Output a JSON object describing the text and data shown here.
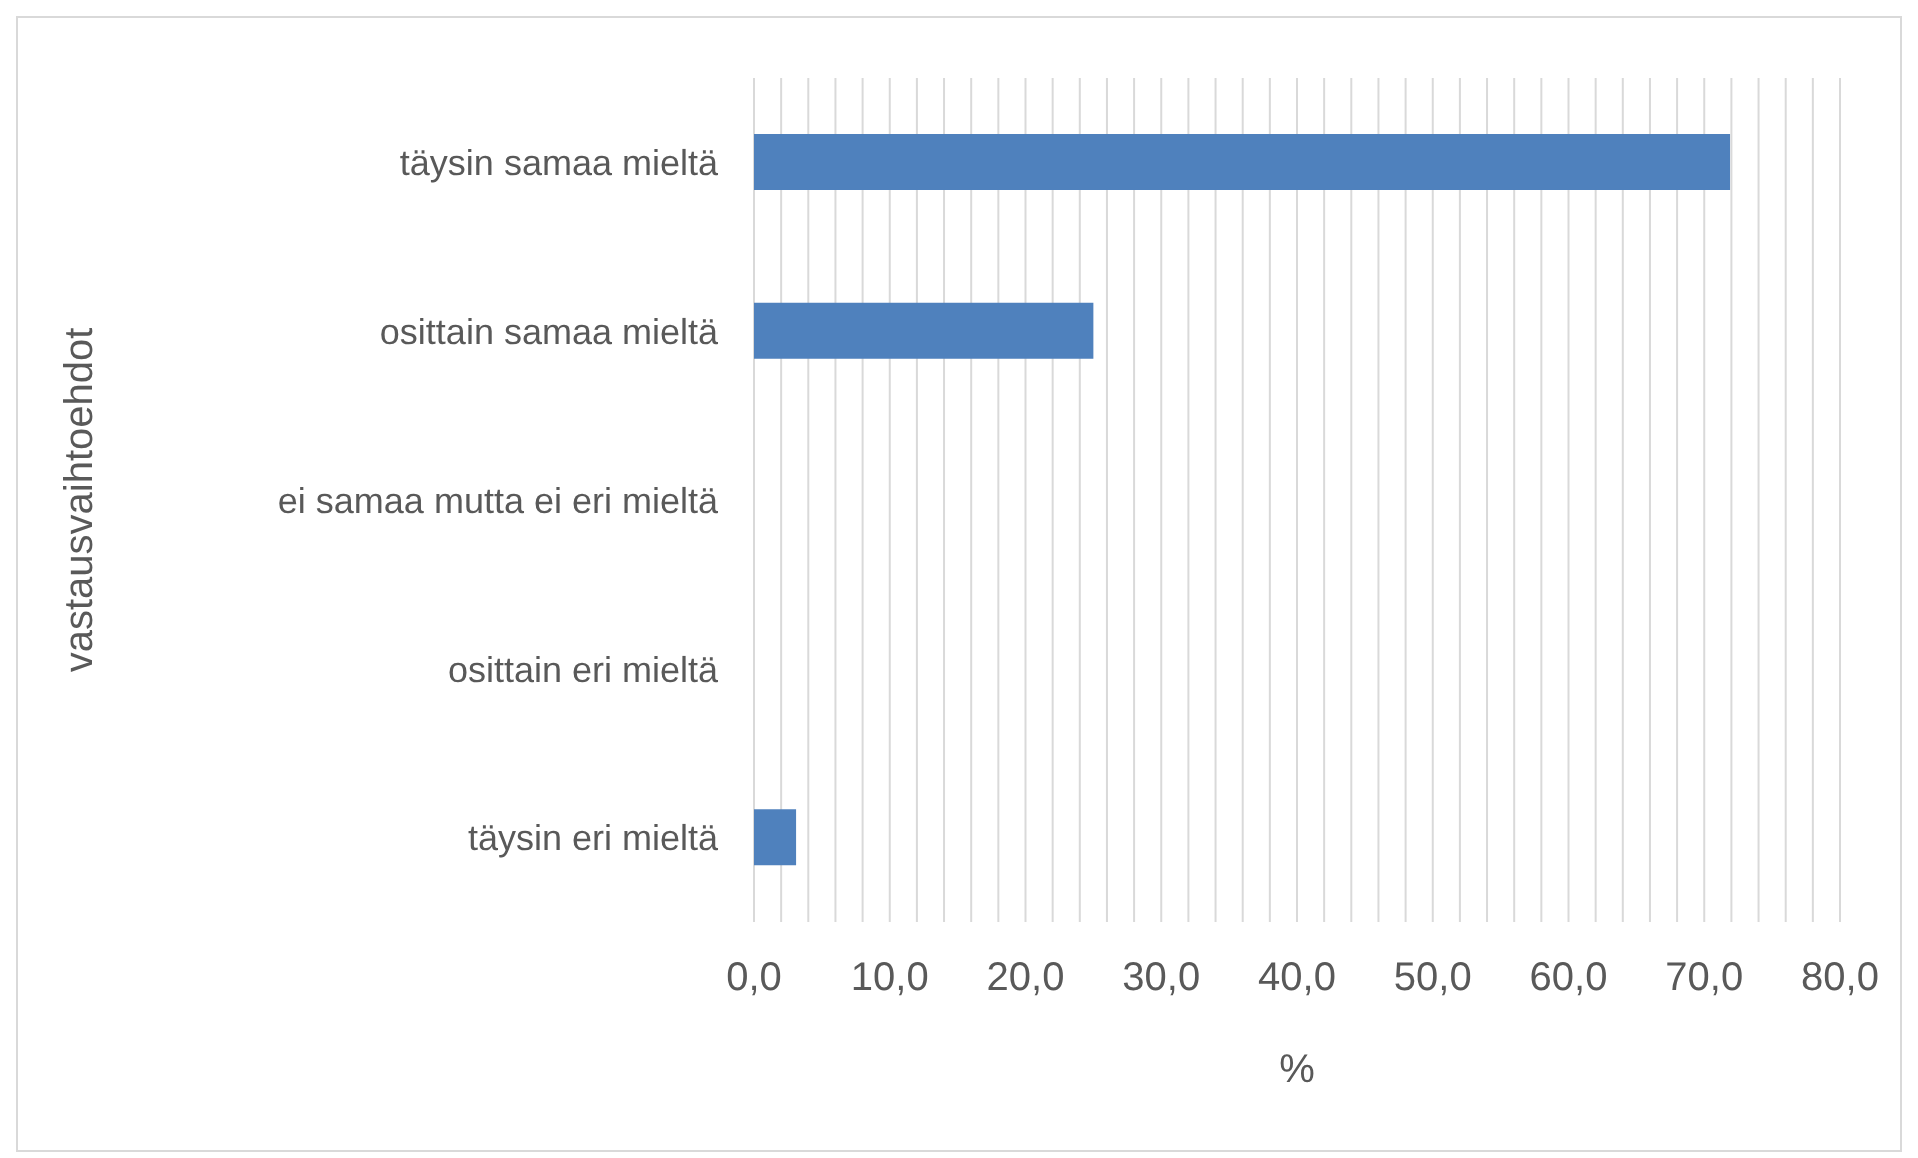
{
  "chart_data": {
    "type": "bar",
    "orientation": "horizontal",
    "xlabel": "%",
    "ylabel": "vastausvaihtoehdot",
    "categories": [
      "täysin samaa mieltä",
      "osittain samaa mieltä",
      "ei samaa mutta ei eri mieltä",
      "osittain eri mieltä",
      "täysin eri mieltä"
    ],
    "values": [
      71.9,
      25.0,
      0,
      0,
      3.1
    ],
    "color": "#4f81bd",
    "xlim": [
      0,
      80
    ],
    "xticks": [
      {
        "value": 0,
        "label": "0,0"
      },
      {
        "value": 2,
        "label": null
      },
      {
        "value": 4,
        "label": null
      },
      {
        "value": 6,
        "label": null
      },
      {
        "value": 8,
        "label": null
      },
      {
        "value": 10,
        "label": "10,0"
      },
      {
        "value": 12,
        "label": null
      },
      {
        "value": 14,
        "label": null
      },
      {
        "value": 16,
        "label": null
      },
      {
        "value": 18,
        "label": null
      },
      {
        "value": 20,
        "label": "20,0"
      },
      {
        "value": 22,
        "label": null
      },
      {
        "value": 24,
        "label": null
      },
      {
        "value": 26,
        "label": null
      },
      {
        "value": 28,
        "label": null
      },
      {
        "value": 30,
        "label": "30,0"
      },
      {
        "value": 32,
        "label": null
      },
      {
        "value": 34,
        "label": null
      },
      {
        "value": 36,
        "label": null
      },
      {
        "value": 38,
        "label": null
      },
      {
        "value": 40,
        "label": "40,0"
      },
      {
        "value": 42,
        "label": null
      },
      {
        "value": 44,
        "label": null
      },
      {
        "value": 46,
        "label": null
      },
      {
        "value": 48,
        "label": null
      },
      {
        "value": 50,
        "label": "50,0"
      },
      {
        "value": 52,
        "label": null
      },
      {
        "value": 54,
        "label": null
      },
      {
        "value": 56,
        "label": null
      },
      {
        "value": 58,
        "label": null
      },
      {
        "value": 60,
        "label": "60,0"
      },
      {
        "value": 62,
        "label": null
      },
      {
        "value": 64,
        "label": null
      },
      {
        "value": 66,
        "label": null
      },
      {
        "value": 68,
        "label": null
      },
      {
        "value": 70,
        "label": "70,0"
      },
      {
        "value": 72,
        "label": null
      },
      {
        "value": 74,
        "label": null
      },
      {
        "value": 76,
        "label": null
      },
      {
        "value": 78,
        "label": null
      },
      {
        "value": 80,
        "label": "80,0"
      }
    ],
    "grid": "x",
    "legend": false
  }
}
